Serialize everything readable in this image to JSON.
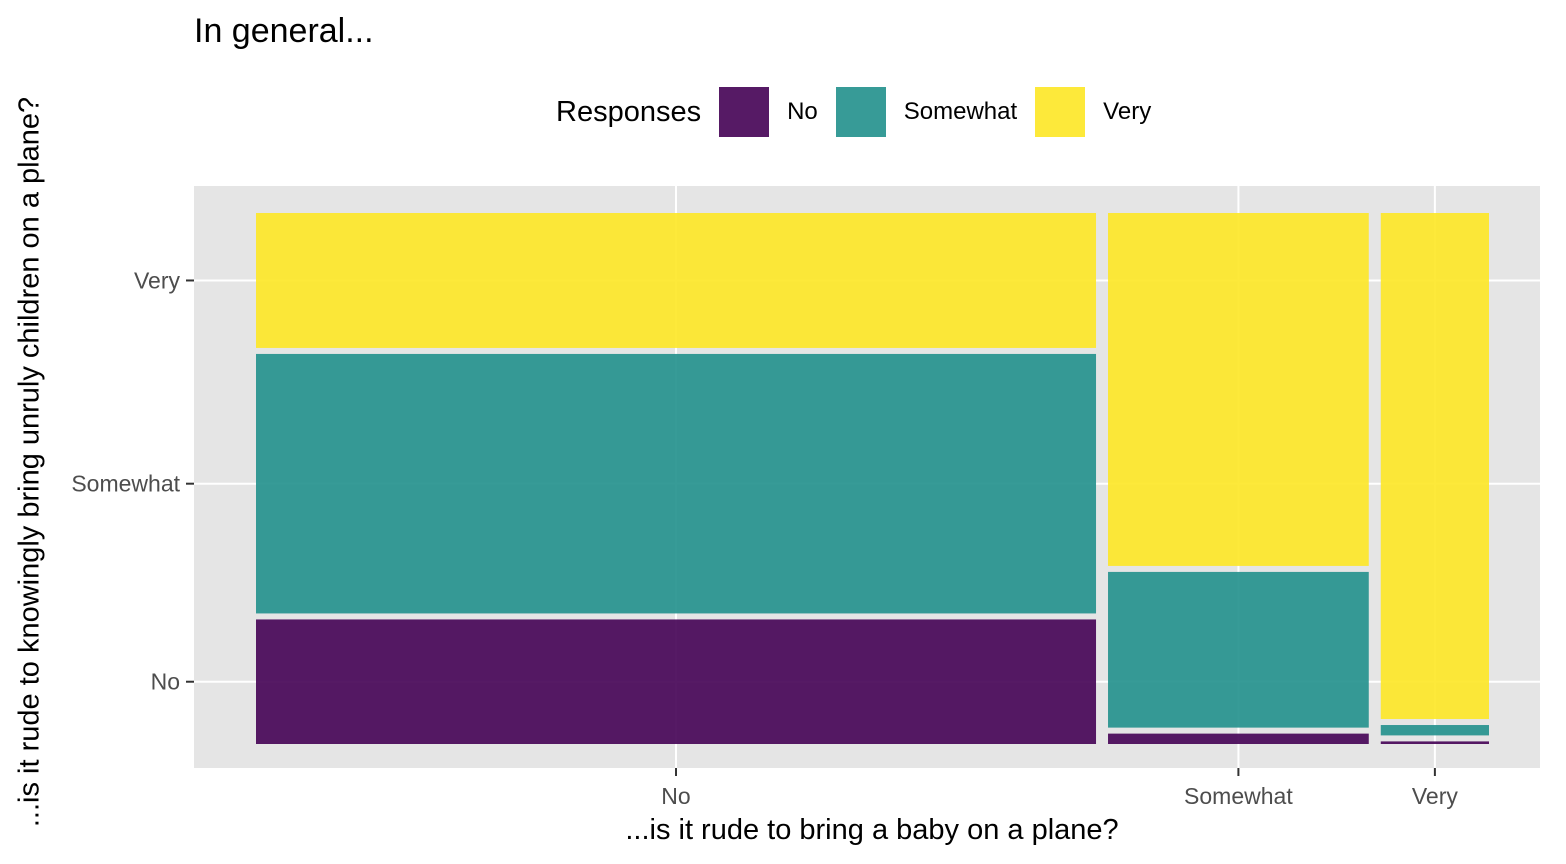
{
  "chart_data": {
    "type": "mosaic",
    "title": "In general...",
    "xlabel": "...is it rude to bring a baby on a plane?",
    "ylabel": "...is it rude to knowingly bring unruly children on a plane?",
    "x_categories": [
      "No",
      "Somewhat",
      "Very"
    ],
    "x_proportions": [
      0.683,
      0.212,
      0.088
    ],
    "y_categories": [
      "No",
      "Somewhat",
      "Very"
    ],
    "segments": [
      {
        "x": "No",
        "values": [
          0.24,
          0.5,
          0.26
        ]
      },
      {
        "x": "Somewhat",
        "values": [
          0.02,
          0.3,
          0.68
        ]
      },
      {
        "x": "Very",
        "values": [
          0.005,
          0.02,
          0.975
        ]
      }
    ],
    "legend": {
      "title": "Responses",
      "position": "top",
      "entries": [
        "No",
        "Somewhat",
        "Very"
      ]
    },
    "colors": {
      "No": "#440154",
      "Somewhat": "#21908C",
      "Very": "#FDE725"
    },
    "fill_alpha": 0.9,
    "panel_background": "#E5E5E5",
    "grid": true
  }
}
